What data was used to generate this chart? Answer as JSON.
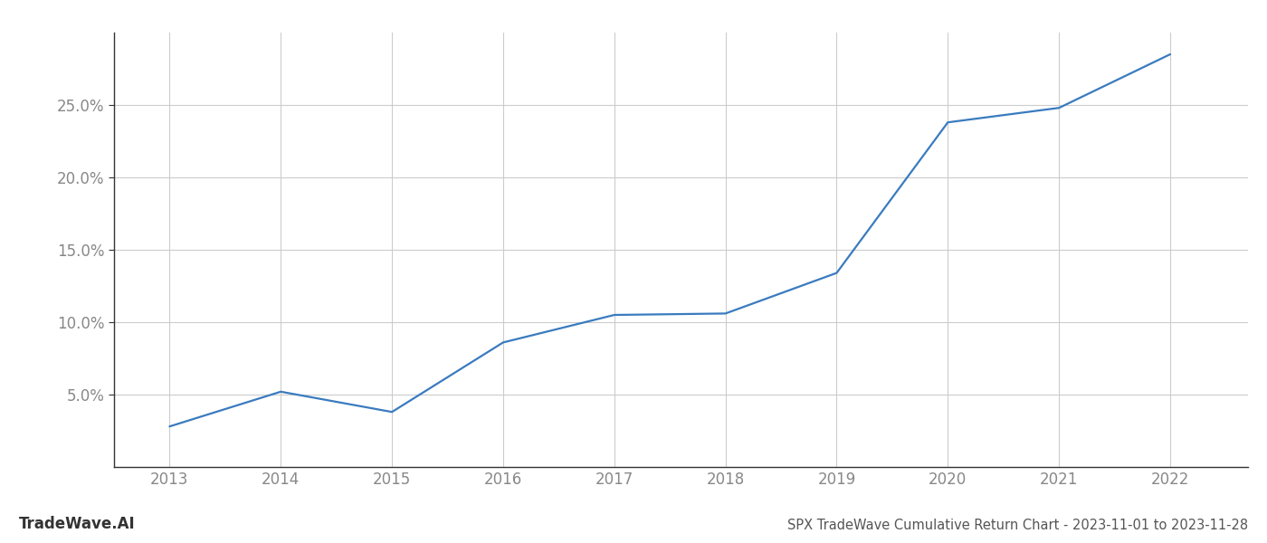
{
  "years": [
    2013,
    2014,
    2015,
    2016,
    2017,
    2018,
    2019,
    2020,
    2021,
    2022
  ],
  "values": [
    2.8,
    5.2,
    3.8,
    8.6,
    10.5,
    10.6,
    13.4,
    23.8,
    24.8,
    28.5
  ],
  "line_color": "#3a7bbf",
  "background_color": "#ffffff",
  "grid_color": "#cccccc",
  "title": "SPX TradeWave Cumulative Return Chart - 2023-11-01 to 2023-11-28",
  "watermark": "TradeWave.AI",
  "ylim": [
    0,
    30
  ],
  "yticks": [
    5.0,
    10.0,
    15.0,
    20.0,
    25.0
  ],
  "xlim": [
    2012.5,
    2022.7
  ],
  "xticks": [
    2013,
    2014,
    2015,
    2016,
    2017,
    2018,
    2019,
    2020,
    2021,
    2022
  ],
  "title_fontsize": 10.5,
  "watermark_fontsize": 12,
  "tick_color": "#888888",
  "spine_color": "#333333",
  "tick_label_fontsize": 12
}
